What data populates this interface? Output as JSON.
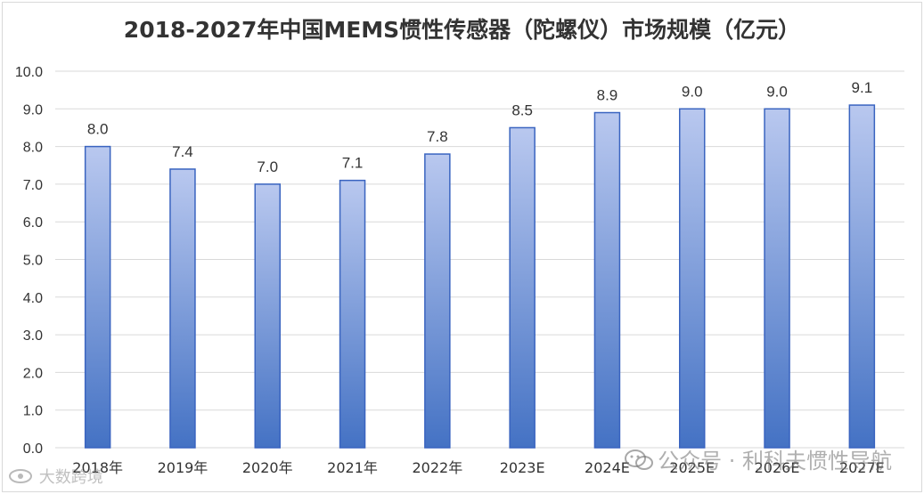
{
  "chart_data": {
    "type": "bar",
    "title": "2018-2027年中国MEMS惯性传感器（陀螺仪）市场规模（亿元）",
    "categories": [
      "2018年",
      "2019年",
      "2020年",
      "2021年",
      "2022年",
      "2023E",
      "2024E",
      "2025E",
      "2026E",
      "2027E"
    ],
    "values": [
      8.0,
      7.4,
      7.0,
      7.1,
      7.8,
      8.5,
      8.9,
      9.0,
      9.0,
      9.1
    ],
    "value_labels": [
      "8.0",
      "7.4",
      "7.0",
      "7.1",
      "7.8",
      "8.5",
      "8.9",
      "9.0",
      "9.0",
      "9.1"
    ],
    "ylim": [
      0,
      10
    ],
    "yticks": [
      "0.0",
      "1.0",
      "2.0",
      "3.0",
      "4.0",
      "5.0",
      "6.0",
      "7.0",
      "8.0",
      "9.0",
      "10.0"
    ],
    "xlabel": "",
    "ylabel": "",
    "grid": true,
    "legend": "none",
    "colors": {
      "bar_top": "#b9c8ef",
      "bar_bottom": "#4472c4",
      "bar_border": "#3a64c0",
      "grid": "#d9d9d9"
    }
  },
  "watermark": {
    "icon": "wechat-icon",
    "text": "公众号 · 利科夫惯性导航"
  },
  "logo": {
    "icon": "eye-logo-icon",
    "text": "大数跨境"
  }
}
